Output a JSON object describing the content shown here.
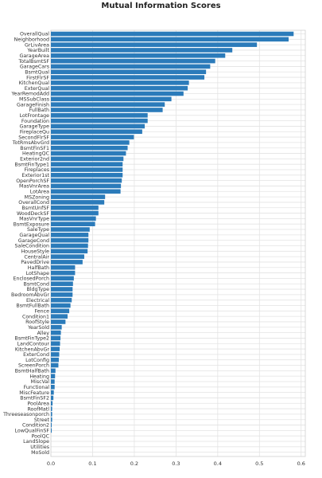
{
  "chart_data": {
    "type": "bar",
    "orientation": "horizontal",
    "title": "Mutual Information Scores",
    "xlabel": "",
    "ylabel": "",
    "xlim": [
      0,
      0.61
    ],
    "xticks": [
      "0.0",
      "0.1",
      "0.2",
      "0.3",
      "0.4",
      "0.5",
      "0.6"
    ],
    "xtick_values": [
      0,
      0.1,
      0.2,
      0.3,
      0.4,
      0.5,
      0.6
    ],
    "grid": true,
    "bar_color": "#2b7bba",
    "categories": [
      "OverallQual",
      "Neighborhood",
      "GrLivArea",
      "YearBuilt",
      "GarageArea",
      "TotalBsmtSF",
      "GarageCars",
      "BsmtQual",
      "FirstFlrSF",
      "KitchenQual",
      "ExterQual",
      "YearRemodAdd",
      "MSSubClass",
      "GarageFinish",
      "FullBath",
      "LotFrontage",
      "Foundation",
      "GarageType",
      "FireplaceQu",
      "SecondFlrSF",
      "TotRmsAbvGrd",
      "BsmtFinSF1",
      "HeatingQC",
      "Exterior2nd",
      "BsmtFinType1",
      "Fireplaces",
      "Exterior1st",
      "OpenPorchSF",
      "MasVnrArea",
      "LotArea",
      "MSZoning",
      "OverallCond",
      "BsmtUnfSF",
      "WoodDeckSF",
      "MasVnrType",
      "BsmtExposure",
      "SaleType",
      "GarageQual",
      "GarageCond",
      "SaleCondition",
      "HouseStyle",
      "CentralAir",
      "PavedDrive",
      "HalfBath",
      "LotShape",
      "EnclosedPorch",
      "BsmtCond",
      "BldgType",
      "BedroomAbvGr",
      "Electrical",
      "BsmtFullBath",
      "Fence",
      "Condition1",
      "RoofStyle",
      "YearSold",
      "Alley",
      "BsmtFinType2",
      "LandContour",
      "KitchenAbvGr",
      "ExterCond",
      "LotConfig",
      "ScreenPorch",
      "BsmtHalfBath",
      "Heating",
      "MiscVal",
      "Functional",
      "MiscFeature",
      "BsmtFinSF2",
      "PoolArea",
      "RoofMatl",
      "Threeseasonporch",
      "Street",
      "Condition2",
      "LowQualFinSF",
      "PoolQC",
      "LandSlope",
      "Utilities",
      "MoSold"
    ],
    "values": [
      0.582,
      0.57,
      0.494,
      0.435,
      0.418,
      0.394,
      0.382,
      0.372,
      0.368,
      0.331,
      0.328,
      0.318,
      0.289,
      0.273,
      0.268,
      0.232,
      0.232,
      0.225,
      0.219,
      0.199,
      0.188,
      0.184,
      0.18,
      0.174,
      0.172,
      0.172,
      0.172,
      0.17,
      0.168,
      0.167,
      0.13,
      0.128,
      0.114,
      0.114,
      0.108,
      0.106,
      0.093,
      0.09,
      0.09,
      0.089,
      0.088,
      0.08,
      0.076,
      0.058,
      0.058,
      0.055,
      0.053,
      0.052,
      0.052,
      0.05,
      0.047,
      0.044,
      0.04,
      0.035,
      0.026,
      0.024,
      0.023,
      0.022,
      0.021,
      0.02,
      0.019,
      0.018,
      0.011,
      0.01,
      0.009,
      0.009,
      0.007,
      0.006,
      0.004,
      0.003,
      0.003,
      0.003,
      0.002,
      0.002,
      0.0,
      0.0,
      0.0,
      0.0
    ]
  }
}
